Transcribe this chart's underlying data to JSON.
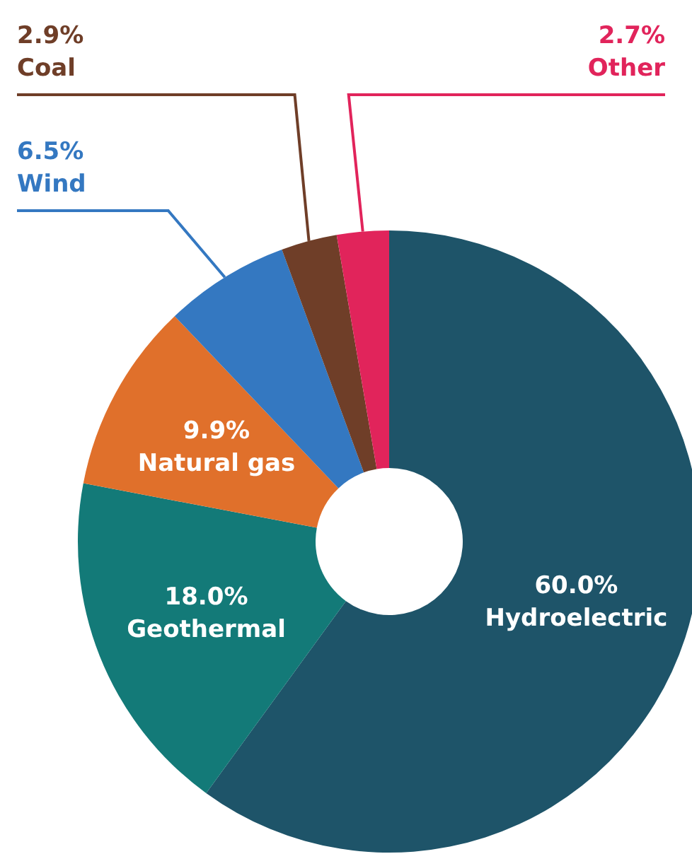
{
  "chart_data": {
    "type": "donut",
    "categories": [
      "Hydroelectric",
      "Geothermal",
      "Natural gas",
      "Wind",
      "Coal",
      "Other"
    ],
    "values": [
      60.0,
      18.0,
      9.9,
      6.5,
      2.9,
      2.7
    ],
    "colors": [
      "#1e5469",
      "#137a78",
      "#e0702b",
      "#3478c1",
      "#6f3e28",
      "#e1245b"
    ],
    "value_labels": [
      "60.0%",
      "18.0%",
      "9.9%",
      "6.5%",
      "2.9%",
      "2.7%"
    ],
    "legend": false
  }
}
